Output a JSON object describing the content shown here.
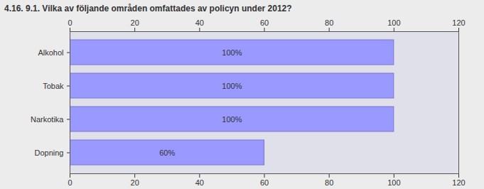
{
  "chart_data": {
    "type": "bar",
    "orientation": "horizontal",
    "title": "4.16. 9.1. Vilka av följande områden omfattades av policyn under 2012?",
    "categories": [
      "Alkohol",
      "Tobak",
      "Narkotika",
      "Dopning"
    ],
    "values": [
      100,
      100,
      100,
      60
    ],
    "value_labels": [
      "100%",
      "100%",
      "100%",
      "60%"
    ],
    "data_labels": true,
    "color": "#9999ff",
    "xlim": [
      0,
      120
    ],
    "xticks": [
      0,
      20,
      40,
      60,
      80,
      100,
      120
    ],
    "grid": false
  }
}
